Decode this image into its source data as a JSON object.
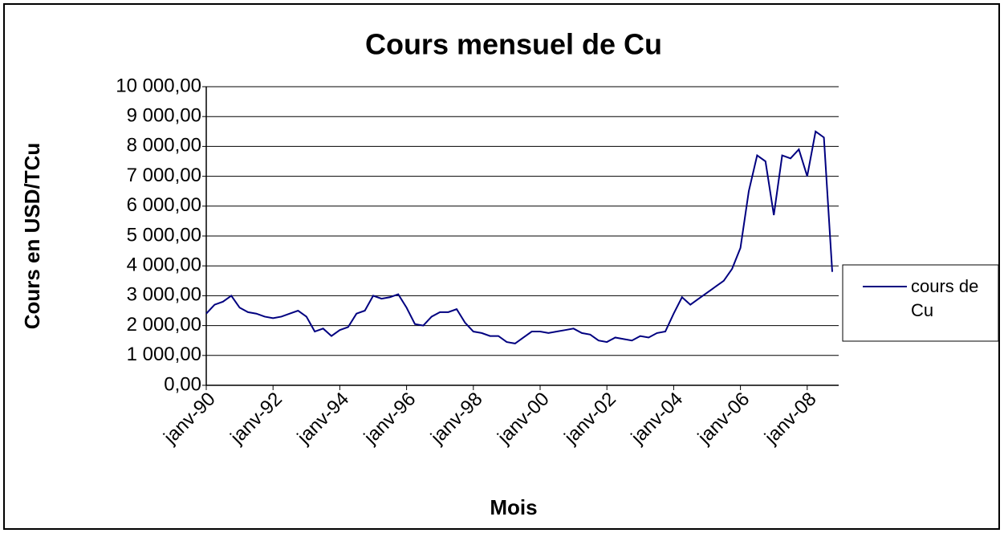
{
  "chart_data": {
    "type": "line",
    "title": "Cours mensuel de Cu",
    "x_label": "Mois",
    "y_label": "Cours en USD/TCu",
    "categories": [
      "janv-90",
      null,
      null,
      null,
      null,
      null,
      null,
      null,
      "janv-92",
      null,
      null,
      null,
      null,
      null,
      null,
      null,
      "janv-94",
      null,
      null,
      null,
      null,
      null,
      null,
      null,
      "janv-96",
      null,
      null,
      null,
      null,
      null,
      null,
      null,
      "janv-98",
      null,
      null,
      null,
      null,
      null,
      null,
      null,
      "janv-00",
      null,
      null,
      null,
      null,
      null,
      null,
      null,
      "janv-02",
      null,
      null,
      null,
      null,
      null,
      null,
      null,
      "janv-04",
      null,
      null,
      null,
      null,
      null,
      null,
      null,
      "janv-06",
      null,
      null,
      null,
      null,
      null,
      null,
      null,
      "janv-08",
      null,
      null,
      null
    ],
    "series": [
      {
        "name": "cours de Cu",
        "color": "#000080",
        "values": [
          2400,
          2700,
          2800,
          3000,
          2600,
          2450,
          2400,
          2300,
          2250,
          2300,
          2400,
          2500,
          2300,
          1800,
          1900,
          1650,
          1850,
          1950,
          2400,
          2500,
          3000,
          2900,
          2950,
          3050,
          2600,
          2050,
          2000,
          2300,
          2450,
          2450,
          2550,
          2100,
          1800,
          1750,
          1650,
          1650,
          1450,
          1400,
          1600,
          1800,
          1800,
          1750,
          1800,
          1850,
          1900,
          1750,
          1700,
          1500,
          1450,
          1600,
          1550,
          1500,
          1650,
          1600,
          1750,
          1800,
          2400,
          2950,
          2700,
          2900,
          3100,
          3300,
          3500,
          3900,
          4600,
          6500,
          7700,
          7500,
          5700,
          7700,
          7600,
          7900,
          7000,
          8500,
          8300,
          3800
        ]
      }
    ],
    "ylim": [
      0,
      10000
    ],
    "yticks": [
      {
        "value": 0,
        "label": "0,00"
      },
      {
        "value": 1000,
        "label": "1 000,00"
      },
      {
        "value": 2000,
        "label": "2 000,00"
      },
      {
        "value": 3000,
        "label": "3 000,00"
      },
      {
        "value": 4000,
        "label": "4 000,00"
      },
      {
        "value": 5000,
        "label": "5 000,00"
      },
      {
        "value": 6000,
        "label": "6 000,00"
      },
      {
        "value": 7000,
        "label": "7 000,00"
      },
      {
        "value": 8000,
        "label": "8 000,00"
      },
      {
        "value": 9000,
        "label": "9 000,00"
      },
      {
        "value": 10000,
        "label": "10 000,00"
      }
    ],
    "grid": true,
    "legend": "right"
  }
}
